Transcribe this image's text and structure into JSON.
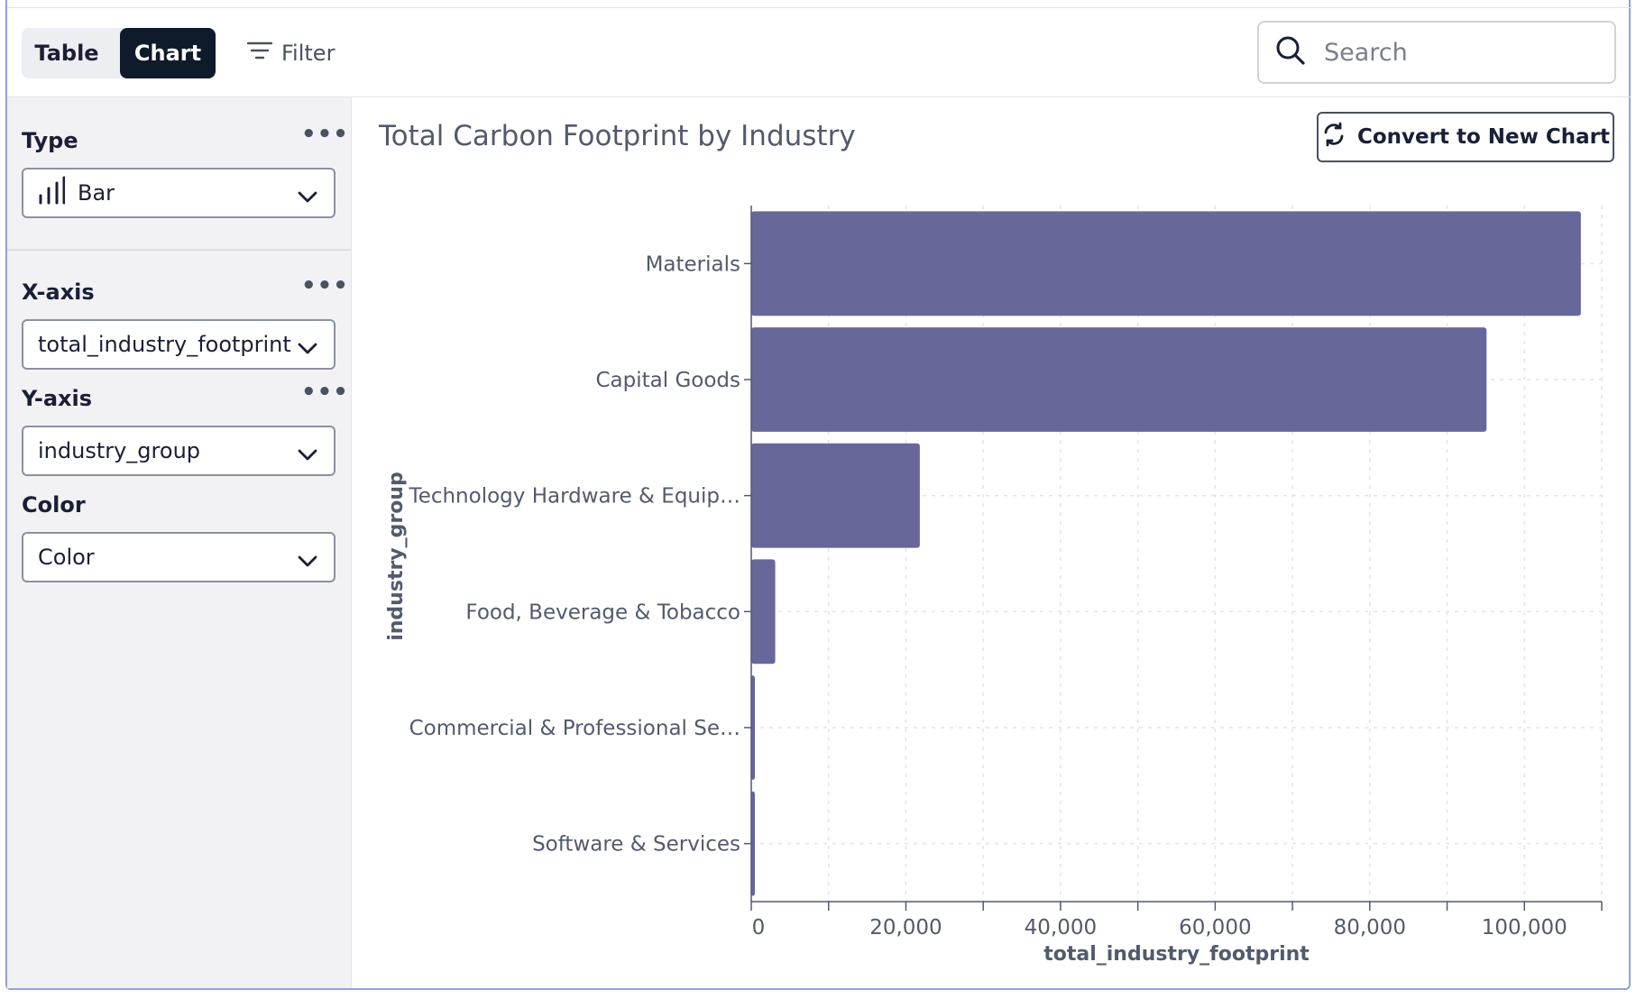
{
  "toolbar": {
    "view_table_label": "Table",
    "view_chart_label": "Chart",
    "filter_label": "Filter",
    "search_placeholder": "Search"
  },
  "sidebar": {
    "type": {
      "label": "Type",
      "value": "Bar"
    },
    "x_axis": {
      "label": "X-axis",
      "value": "total_industry_footprint"
    },
    "y_axis": {
      "label": "Y-axis",
      "value": "industry_group"
    },
    "color": {
      "label": "Color",
      "value": "Color"
    }
  },
  "chart_panel": {
    "title": "Total Carbon Footprint by Industry",
    "convert_label": "Convert to New Chart"
  },
  "chart_data": {
    "type": "bar",
    "orientation": "horizontal",
    "title": "Total Carbon Footprint by Industry",
    "xlabel": "total_industry_footprint",
    "ylabel": "industry_group",
    "categories": [
      "Materials",
      "Capital Goods",
      "Technology Hardware & Equip…",
      "Food, Beverage & Tobacco",
      "Commercial & Professional Se…",
      "Software & Services"
    ],
    "values": [
      107300,
      95100,
      21800,
      3100,
      350,
      250
    ],
    "xlim": [
      0,
      110000
    ],
    "x_ticks": [
      "0",
      "20,000",
      "40,000",
      "60,000",
      "80,000",
      "100,000"
    ],
    "grid": true,
    "bar_color": "#67679a"
  }
}
